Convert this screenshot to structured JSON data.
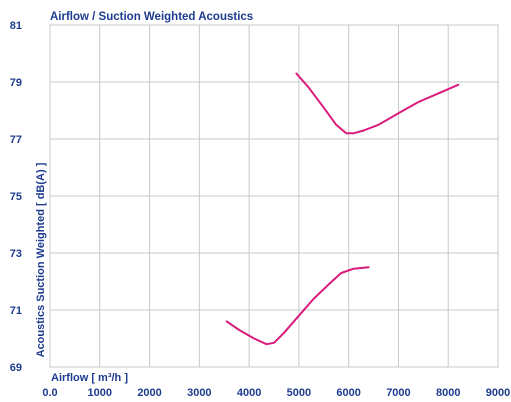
{
  "chart_data": {
    "type": "line",
    "title": "Airflow / Suction Weighted Acoustics",
    "xlabel": "Airflow [ m³/h ]",
    "ylabel": "Acoustics Suction Weighted [ dB(A) ]",
    "xlim": [
      0,
      9000
    ],
    "ylim": [
      69,
      81
    ],
    "x_ticks": [
      0,
      1000,
      2000,
      3000,
      4000,
      5000,
      6000,
      7000,
      8000,
      9000
    ],
    "x_tick_labels": [
      "0.0",
      "1000",
      "2000",
      "3000",
      "4000",
      "5000",
      "6000",
      "7000",
      "8000",
      "9000"
    ],
    "y_ticks": [
      69,
      71,
      73,
      75,
      77,
      79,
      81
    ],
    "y_tick_labels": [
      "69",
      "71",
      "73",
      "75",
      "77",
      "79",
      "81"
    ],
    "grid": true,
    "line_color": "#d81b7d",
    "series": [
      {
        "x": [
          3550,
          3800,
          4100,
          4350,
          4500,
          4700,
          5000,
          5300,
          5600,
          5850,
          6100,
          6400
        ],
        "values": [
          70.6,
          70.3,
          70.0,
          69.8,
          69.85,
          70.2,
          70.8,
          71.4,
          71.9,
          72.3,
          72.45,
          72.5
        ]
      },
      {
        "x": [
          4950,
          5200,
          5500,
          5750,
          5950,
          6100,
          6300,
          6600,
          7000,
          7400,
          7800,
          8200
        ],
        "values": [
          79.3,
          78.8,
          78.1,
          77.5,
          77.2,
          77.2,
          77.3,
          77.5,
          77.9,
          78.3,
          78.6,
          78.9
        ]
      }
    ]
  }
}
